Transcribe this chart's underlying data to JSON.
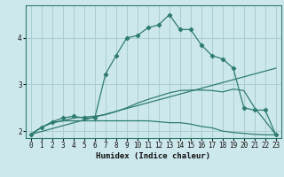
{
  "xlabel": "Humidex (Indice chaleur)",
  "bg_color": "#cde8ec",
  "grid_color": "#aacdd4",
  "line_color": "#2e7d6e",
  "xlim": [
    -0.5,
    23.5
  ],
  "ylim": [
    1.85,
    4.7
  ],
  "xticks": [
    0,
    1,
    2,
    3,
    4,
    5,
    6,
    7,
    8,
    9,
    10,
    11,
    12,
    13,
    14,
    15,
    16,
    17,
    18,
    19,
    20,
    21,
    22,
    23
  ],
  "yticks": [
    2,
    3,
    4
  ],
  "lines": [
    {
      "x": [
        0,
        1,
        2,
        3,
        4,
        5,
        6,
        7,
        8,
        9,
        10,
        11,
        12,
        13,
        14,
        15,
        16,
        17,
        18,
        19,
        20,
        21,
        22,
        23
      ],
      "y": [
        1.93,
        2.08,
        2.18,
        2.22,
        2.22,
        2.22,
        2.22,
        2.22,
        2.22,
        2.22,
        2.22,
        2.22,
        2.2,
        2.18,
        2.18,
        2.15,
        2.1,
        2.07,
        2.0,
        1.97,
        1.95,
        1.93,
        1.92,
        1.92
      ],
      "marker": false
    },
    {
      "x": [
        0,
        23
      ],
      "y": [
        1.93,
        3.35
      ],
      "marker": false
    },
    {
      "x": [
        0,
        1,
        2,
        3,
        4,
        5,
        6,
        7,
        8,
        9,
        10,
        11,
        12,
        13,
        14,
        15,
        16,
        17,
        18,
        19,
        20,
        21,
        22,
        23
      ],
      "y": [
        1.93,
        2.08,
        2.18,
        2.22,
        2.28,
        2.3,
        2.32,
        2.35,
        2.42,
        2.5,
        2.6,
        2.68,
        2.75,
        2.82,
        2.87,
        2.88,
        2.88,
        2.87,
        2.84,
        2.9,
        2.87,
        2.5,
        2.22,
        1.92
      ],
      "marker": false
    },
    {
      "x": [
        0,
        1,
        2,
        3,
        4,
        5,
        6,
        7,
        8,
        9,
        10,
        11,
        12,
        13,
        14,
        15,
        16,
        17,
        18,
        19,
        20,
        21,
        22,
        23
      ],
      "y": [
        1.93,
        2.08,
        2.2,
        2.28,
        2.32,
        2.28,
        2.28,
        3.22,
        3.62,
        4.0,
        4.05,
        4.22,
        4.28,
        4.5,
        4.18,
        4.18,
        3.85,
        3.62,
        3.55,
        3.35,
        2.5,
        2.45,
        2.45,
        1.92
      ],
      "marker": true
    }
  ]
}
